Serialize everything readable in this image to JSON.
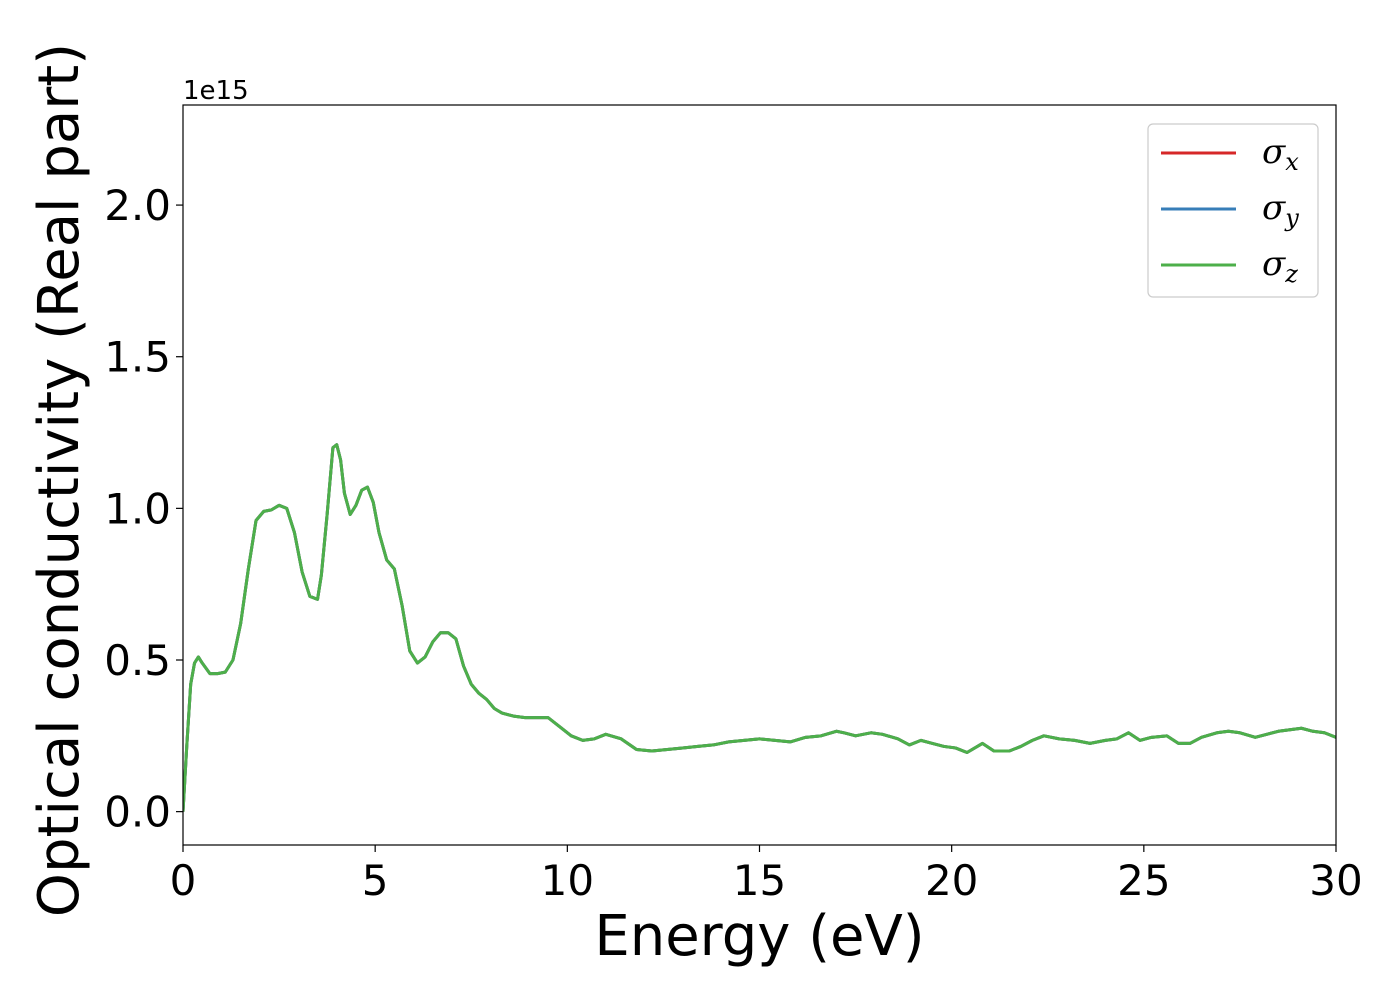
{
  "chart_data": {
    "type": "line",
    "xlabel": "Energy (eV)",
    "ylabel": "Optical conductivity (Real part)",
    "y_offset_label": "1e15",
    "xlim": [
      0,
      30
    ],
    "ylim": [
      -0.11,
      2.33
    ],
    "x_ticks": [
      0,
      5,
      10,
      15,
      20,
      25,
      30
    ],
    "x_tick_labels": [
      "0",
      "5",
      "10",
      "15",
      "20",
      "25",
      "30"
    ],
    "y_ticks": [
      0.0,
      0.5,
      1.0,
      1.5,
      2.0
    ],
    "y_tick_labels": [
      "0.0",
      "0.5",
      "1.0",
      "1.5",
      "2.0"
    ],
    "grid": false,
    "legend_position": "top-right",
    "x": [
      0,
      0.1,
      0.2,
      0.3,
      0.4,
      0.5,
      0.7,
      0.9,
      1.1,
      1.3,
      1.5,
      1.7,
      1.9,
      2.1,
      2.3,
      2.5,
      2.7,
      2.9,
      3.1,
      3.3,
      3.5,
      3.6,
      3.75,
      3.9,
      4.0,
      4.1,
      4.2,
      4.35,
      4.5,
      4.65,
      4.8,
      4.95,
      5.1,
      5.3,
      5.5,
      5.7,
      5.9,
      6.1,
      6.3,
      6.5,
      6.7,
      6.9,
      7.1,
      7.3,
      7.5,
      7.7,
      7.9,
      8.1,
      8.3,
      8.6,
      8.9,
      9.2,
      9.5,
      9.8,
      10.1,
      10.4,
      10.7,
      11.0,
      11.4,
      11.8,
      12.2,
      12.6,
      13.0,
      13.4,
      13.8,
      14.2,
      14.6,
      15.0,
      15.4,
      15.8,
      16.2,
      16.6,
      17.0,
      17.2,
      17.5,
      17.9,
      18.2,
      18.6,
      18.9,
      19.2,
      19.5,
      19.8,
      20.1,
      20.4,
      20.8,
      21.1,
      21.5,
      21.8,
      22.1,
      22.4,
      22.8,
      23.2,
      23.6,
      24.0,
      24.3,
      24.6,
      24.9,
      25.2,
      25.6,
      25.9,
      26.2,
      26.5,
      26.9,
      27.2,
      27.5,
      27.9,
      28.2,
      28.5,
      28.8,
      29.1,
      29.4,
      29.7,
      30.0
    ],
    "series": [
      {
        "name": "σx",
        "legend_main": "σ",
        "legend_sub": "x",
        "color": "#d62728",
        "values": [
          0.0,
          0.22,
          0.42,
          0.49,
          0.51,
          0.49,
          0.455,
          0.455,
          0.46,
          0.5,
          0.62,
          0.8,
          0.96,
          0.99,
          0.995,
          1.01,
          1.0,
          0.92,
          0.79,
          0.71,
          0.7,
          0.78,
          0.98,
          1.2,
          1.21,
          1.16,
          1.05,
          0.98,
          1.01,
          1.06,
          1.07,
          1.02,
          0.92,
          0.83,
          0.8,
          0.68,
          0.53,
          0.49,
          0.51,
          0.56,
          0.59,
          0.59,
          0.57,
          0.48,
          0.42,
          0.39,
          0.37,
          0.34,
          0.325,
          0.315,
          0.31,
          0.31,
          0.31,
          0.28,
          0.25,
          0.235,
          0.24,
          0.255,
          0.24,
          0.205,
          0.2,
          0.205,
          0.21,
          0.215,
          0.22,
          0.23,
          0.235,
          0.24,
          0.235,
          0.23,
          0.245,
          0.25,
          0.265,
          0.26,
          0.25,
          0.26,
          0.255,
          0.24,
          0.22,
          0.235,
          0.225,
          0.215,
          0.21,
          0.195,
          0.225,
          0.2,
          0.2,
          0.215,
          0.235,
          0.25,
          0.24,
          0.235,
          0.225,
          0.235,
          0.24,
          0.26,
          0.235,
          0.245,
          0.25,
          0.225,
          0.225,
          0.245,
          0.26,
          0.265,
          0.26,
          0.245,
          0.255,
          0.265,
          0.27,
          0.275,
          0.265,
          0.26,
          0.245
        ]
      },
      {
        "name": "σy",
        "legend_main": "σ",
        "legend_sub": "y",
        "color": "#377eb8",
        "values": [
          0.0,
          0.22,
          0.42,
          0.49,
          0.51,
          0.49,
          0.455,
          0.455,
          0.46,
          0.5,
          0.62,
          0.8,
          0.96,
          0.99,
          0.995,
          1.01,
          1.0,
          0.92,
          0.79,
          0.71,
          0.7,
          0.78,
          0.98,
          1.2,
          1.21,
          1.16,
          1.05,
          0.98,
          1.01,
          1.06,
          1.07,
          1.02,
          0.92,
          0.83,
          0.8,
          0.68,
          0.53,
          0.49,
          0.51,
          0.56,
          0.59,
          0.59,
          0.57,
          0.48,
          0.42,
          0.39,
          0.37,
          0.34,
          0.325,
          0.315,
          0.31,
          0.31,
          0.31,
          0.28,
          0.25,
          0.235,
          0.24,
          0.255,
          0.24,
          0.205,
          0.2,
          0.205,
          0.21,
          0.215,
          0.22,
          0.23,
          0.235,
          0.24,
          0.235,
          0.23,
          0.245,
          0.25,
          0.265,
          0.26,
          0.25,
          0.26,
          0.255,
          0.24,
          0.22,
          0.235,
          0.225,
          0.215,
          0.21,
          0.195,
          0.225,
          0.2,
          0.2,
          0.215,
          0.235,
          0.25,
          0.24,
          0.235,
          0.225,
          0.235,
          0.24,
          0.26,
          0.235,
          0.245,
          0.25,
          0.225,
          0.225,
          0.245,
          0.26,
          0.265,
          0.26,
          0.245,
          0.255,
          0.265,
          0.27,
          0.275,
          0.265,
          0.26,
          0.245
        ]
      },
      {
        "name": "σz",
        "legend_main": "σ",
        "legend_sub": "z",
        "color": "#4daf4a",
        "values": [
          0.0,
          0.22,
          0.42,
          0.49,
          0.51,
          0.49,
          0.455,
          0.455,
          0.46,
          0.5,
          0.62,
          0.8,
          0.96,
          0.99,
          0.995,
          1.01,
          1.0,
          0.92,
          0.79,
          0.71,
          0.7,
          0.78,
          0.98,
          1.2,
          1.21,
          1.16,
          1.05,
          0.98,
          1.01,
          1.06,
          1.07,
          1.02,
          0.92,
          0.83,
          0.8,
          0.68,
          0.53,
          0.49,
          0.51,
          0.56,
          0.59,
          0.59,
          0.57,
          0.48,
          0.42,
          0.39,
          0.37,
          0.34,
          0.325,
          0.315,
          0.31,
          0.31,
          0.31,
          0.28,
          0.25,
          0.235,
          0.24,
          0.255,
          0.24,
          0.205,
          0.2,
          0.205,
          0.21,
          0.215,
          0.22,
          0.23,
          0.235,
          0.24,
          0.235,
          0.23,
          0.245,
          0.25,
          0.265,
          0.26,
          0.25,
          0.26,
          0.255,
          0.24,
          0.22,
          0.235,
          0.225,
          0.215,
          0.21,
          0.195,
          0.225,
          0.2,
          0.2,
          0.215,
          0.235,
          0.25,
          0.24,
          0.235,
          0.225,
          0.235,
          0.24,
          0.26,
          0.235,
          0.245,
          0.25,
          0.225,
          0.225,
          0.245,
          0.26,
          0.265,
          0.26,
          0.245,
          0.255,
          0.265,
          0.27,
          0.275,
          0.265,
          0.26,
          0.245
        ]
      }
    ]
  }
}
